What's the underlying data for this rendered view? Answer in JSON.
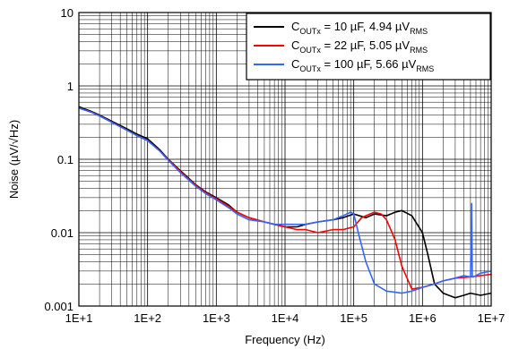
{
  "chart_data": {
    "type": "line",
    "title": "",
    "xlabel": "Frequency (Hz)",
    "ylabel": "Noise (µV/√Hz)",
    "x_scale": "log",
    "y_scale": "log",
    "xlim": [
      10,
      10000000
    ],
    "ylim": [
      0.001,
      10
    ],
    "grid": true,
    "legend_position": "top-right",
    "x_ticks": [
      "1E+1",
      "1E+2",
      "1E+3",
      "1E+4",
      "1E+5",
      "1E+6",
      "1E+7"
    ],
    "y_ticks": [
      "10",
      "1",
      "0.1",
      "0.01",
      "0.001"
    ],
    "series": [
      {
        "name": "C_OUTx = 10 µF, 4.94 µV_RMS",
        "legend": {
          "prefix": "C",
          "sub1": "OUTx",
          "mid": " = 10 µF, 4.94 µV",
          "sub2": "RMS"
        },
        "color": "#000000",
        "x": [
          10,
          15,
          20,
          30,
          50,
          70,
          100,
          150,
          200,
          300,
          500,
          700,
          1000,
          1500,
          2000,
          3000,
          5000,
          7000,
          10000,
          15000,
          20000,
          30000,
          50000,
          70000,
          100000,
          150000,
          200000,
          300000,
          400000,
          500000,
          700000,
          1000000,
          1200000,
          1500000,
          2000000,
          3000000,
          4000000,
          5000000,
          7000000,
          10000000
        ],
        "y": [
          0.52,
          0.45,
          0.4,
          0.33,
          0.26,
          0.22,
          0.19,
          0.135,
          0.1,
          0.07,
          0.045,
          0.036,
          0.03,
          0.024,
          0.019,
          0.016,
          0.014,
          0.013,
          0.012,
          0.012,
          0.013,
          0.014,
          0.015,
          0.016,
          0.018,
          0.016,
          0.018,
          0.017,
          0.019,
          0.02,
          0.017,
          0.01,
          0.005,
          0.002,
          0.0015,
          0.0013,
          0.0014,
          0.0015,
          0.0014,
          0.0015
        ]
      },
      {
        "name": "C_OUTx = 22 µF, 5.05 µV_RMS",
        "legend": {
          "prefix": "C",
          "sub1": "OUTx",
          "mid": " = 22 µF, 5.05 µV",
          "sub2": "RMS"
        },
        "color": "#ff0000",
        "x": [
          10,
          15,
          20,
          30,
          50,
          70,
          100,
          150,
          200,
          300,
          500,
          700,
          1000,
          1500,
          2000,
          3000,
          5000,
          7000,
          10000,
          15000,
          20000,
          30000,
          50000,
          70000,
          100000,
          130000,
          150000,
          200000,
          250000,
          300000,
          400000,
          500000,
          700000,
          1000000,
          1500000,
          2000000,
          3000000,
          5000000,
          7000000,
          10000000
        ],
        "y": [
          0.5,
          0.44,
          0.39,
          0.32,
          0.25,
          0.21,
          0.18,
          0.13,
          0.098,
          0.068,
          0.044,
          0.035,
          0.029,
          0.023,
          0.019,
          0.016,
          0.014,
          0.013,
          0.012,
          0.011,
          0.011,
          0.01,
          0.011,
          0.011,
          0.012,
          0.016,
          0.017,
          0.019,
          0.018,
          0.015,
          0.008,
          0.0035,
          0.0017,
          0.0018,
          0.002,
          0.0022,
          0.0024,
          0.0025,
          0.0026,
          0.0027
        ]
      },
      {
        "name": "C_OUTx = 100 µF, 5.66 µV_RMS",
        "legend": {
          "prefix": "C",
          "sub1": "OUTx",
          "mid": " = 100 µF, 5.66 µV",
          "sub2": "RMS"
        },
        "color": "#3366ff",
        "x": [
          10,
          15,
          20,
          30,
          50,
          70,
          100,
          150,
          200,
          300,
          500,
          700,
          1000,
          1500,
          2000,
          3000,
          5000,
          7000,
          10000,
          15000,
          20000,
          30000,
          50000,
          70000,
          90000,
          100000,
          120000,
          150000,
          200000,
          300000,
          500000,
          700000,
          1000000,
          1500000,
          2000000,
          3000000,
          4000000,
          5000000,
          5200000,
          5300000,
          5500000,
          7000000,
          10000000
        ],
        "y": [
          0.5,
          0.44,
          0.39,
          0.32,
          0.25,
          0.21,
          0.18,
          0.13,
          0.097,
          0.066,
          0.043,
          0.034,
          0.028,
          0.022,
          0.018,
          0.015,
          0.014,
          0.013,
          0.013,
          0.013,
          0.013,
          0.014,
          0.015,
          0.017,
          0.019,
          0.018,
          0.009,
          0.004,
          0.002,
          0.0016,
          0.0015,
          0.0016,
          0.0018,
          0.002,
          0.0022,
          0.0024,
          0.0026,
          0.0025,
          0.025,
          0.0025,
          0.0025,
          0.0028,
          0.003
        ]
      }
    ]
  }
}
